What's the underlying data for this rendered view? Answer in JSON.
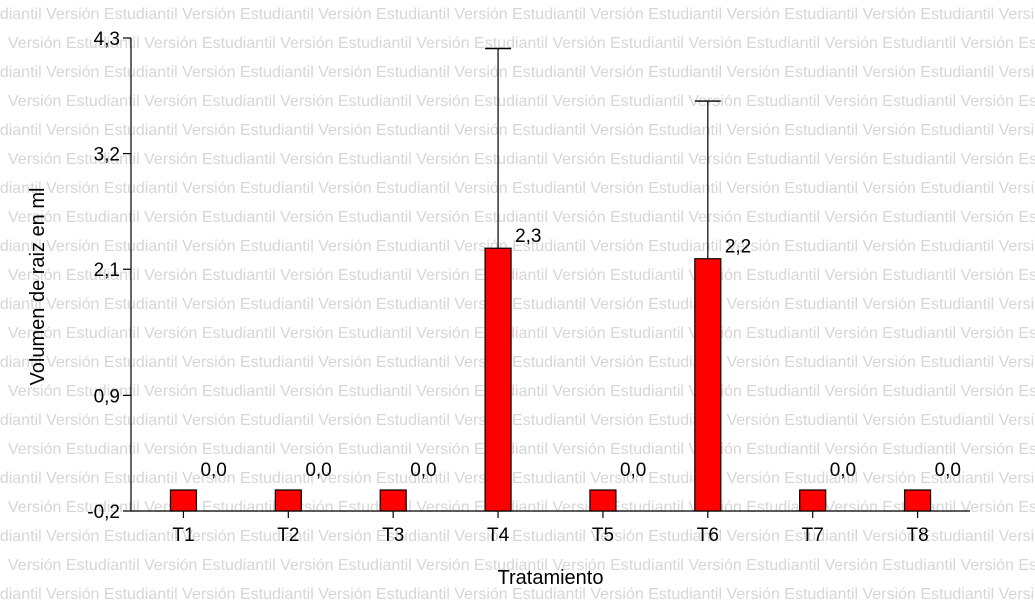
{
  "watermark_text": "Versión Estudiantil",
  "chart_data": {
    "type": "bar",
    "categories": [
      "T1",
      "T2",
      "T3",
      "T4",
      "T5",
      "T6",
      "T7",
      "T8"
    ],
    "values": [
      0.0,
      0.0,
      0.0,
      2.3,
      0.0,
      2.2,
      0.0,
      0.0
    ],
    "value_labels": [
      "0,0",
      "0,0",
      "0,0",
      "2,3",
      "0,0",
      "2,2",
      "0,0",
      "0,0"
    ],
    "error_upper": [
      null,
      null,
      null,
      4.2,
      null,
      3.7,
      null,
      null
    ],
    "xlabel": "Tratamiento",
    "ylabel": "Volumen de raiz en ml",
    "ylim": [
      -0.2,
      4.3
    ],
    "yticks": [
      -0.2,
      0.9,
      2.1,
      3.2,
      4.3
    ],
    "ytick_labels": [
      "-0,2",
      "0,9",
      "2,1",
      "3,2",
      "4,3"
    ],
    "bar_color": "#ff0000",
    "grid": false
  }
}
